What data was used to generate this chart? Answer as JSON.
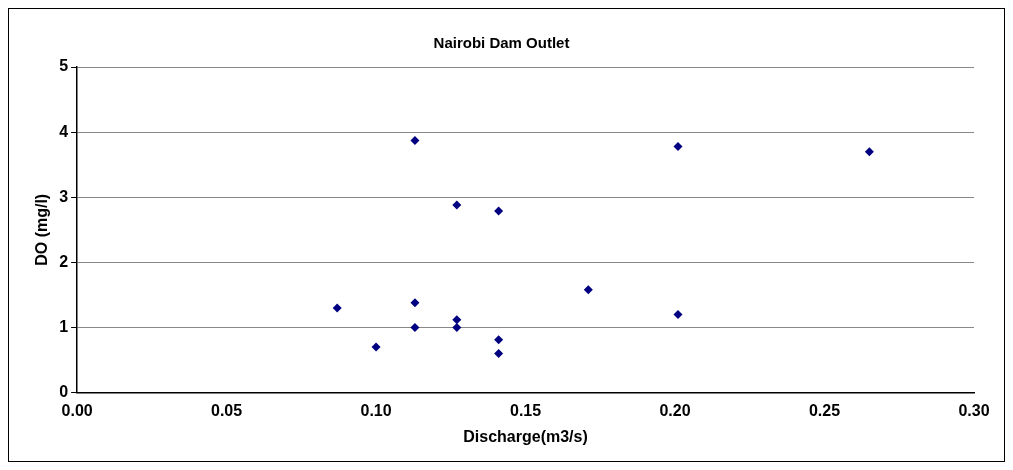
{
  "chart_data": {
    "type": "scatter",
    "title": "Nairobi Dam Outlet",
    "xlabel": "Discharge(m3/s)",
    "ylabel": "DO (mg/l)",
    "x": [
      0.087,
      0.1,
      0.113,
      0.113,
      0.113,
      0.127,
      0.127,
      0.127,
      0.141,
      0.141,
      0.141,
      0.171,
      0.201,
      0.201,
      0.265
    ],
    "series": [
      {
        "color": "#000080",
        "values": [
          1.3,
          0.7,
          3.87,
          1.38,
          1.0,
          2.88,
          1.12,
          1.0,
          2.79,
          0.81,
          0.6,
          1.58,
          3.78,
          1.2,
          3.7
        ]
      }
    ],
    "xlim": [
      0,
      0.3
    ],
    "xticks": [
      {
        "value": 0,
        "label": "0.00"
      },
      0.05,
      {
        "value": 0.1,
        "label": "0.10"
      },
      0.15,
      {
        "value": 0.2,
        "label": "0.20"
      },
      0.25,
      {
        "value": 0.3,
        "label": "0.30"
      }
    ],
    "ylim": [
      0,
      5
    ],
    "yticks": [
      0,
      1,
      2,
      3,
      4,
      5
    ],
    "grid": "y",
    "marker": "diamond",
    "legend": false
  }
}
